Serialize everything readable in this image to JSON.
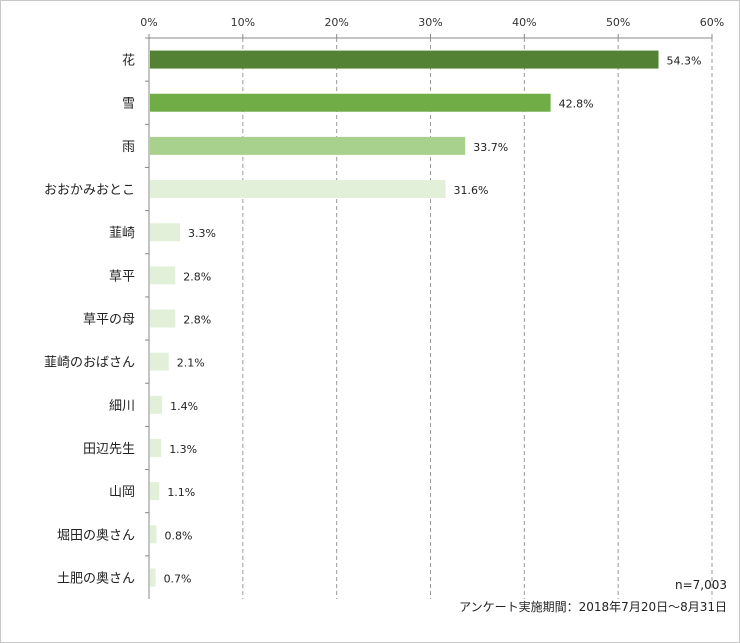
{
  "chart_data": {
    "type": "bar",
    "orientation": "horizontal",
    "categories": [
      "花",
      "雪",
      "雨",
      "おおかみおとこ",
      "韮崎",
      "草平",
      "草平の母",
      "韮崎のおばさん",
      "細川",
      "田辺先生",
      "山岡",
      "堀田の奥さん",
      "土肥の奥さん"
    ],
    "values": [
      54.3,
      42.8,
      33.7,
      31.6,
      3.3,
      2.8,
      2.8,
      2.1,
      1.4,
      1.3,
      1.1,
      0.8,
      0.7
    ],
    "value_labels": [
      "54.3%",
      "42.8%",
      "33.7%",
      "31.6%",
      "3.3%",
      "2.8%",
      "2.8%",
      "2.1%",
      "1.4%",
      "1.3%",
      "1.1%",
      "0.8%",
      "0.7%"
    ],
    "bar_colors": [
      "#548235",
      "#70ad47",
      "#a9d18e",
      "#e2f0d9",
      "#e2f0d9",
      "#e2f0d9",
      "#e2f0d9",
      "#e2f0d9",
      "#e2f0d9",
      "#e2f0d9",
      "#e2f0d9",
      "#e2f0d9",
      "#e2f0d9"
    ],
    "xlim": [
      0,
      60
    ],
    "xticks": [
      0,
      10,
      20,
      30,
      40,
      50,
      60
    ],
    "xtick_labels": [
      "0%",
      "10%",
      "20%",
      "30%",
      "40%",
      "50%",
      "60%"
    ],
    "xaxis_position": "top",
    "grid": "vertical-dashed",
    "title": "",
    "xlabel": "",
    "ylabel": ""
  },
  "notes": {
    "sample": "n=7,003",
    "period": "アンケート実施期間：2018年7月20日～8月31日"
  }
}
